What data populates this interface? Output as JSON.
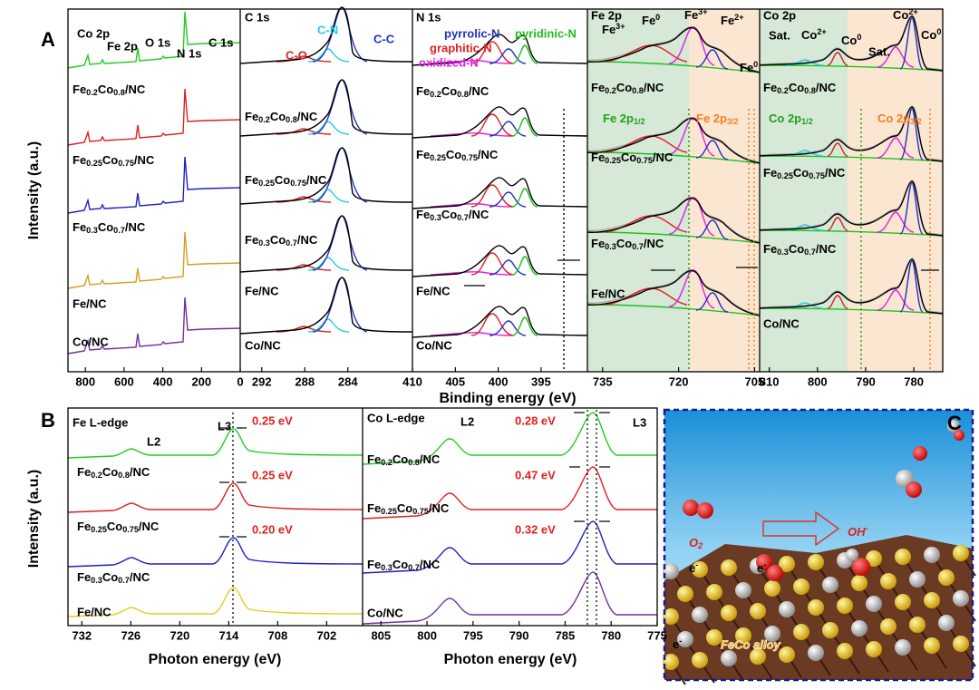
{
  "panel_a": {
    "label": "A",
    "y_title": "Intensity (a.u.)",
    "x_title": "Binding energy (eV)",
    "panels": [
      {
        "xlim": [
          890,
          0
        ],
        "xticks": [
          800,
          600,
          400,
          200,
          0
        ],
        "peaks": [
          "Co 2p",
          "Fe 2p",
          "O 1s",
          "N 1s",
          "C 1s"
        ],
        "samples": [
          "Fe0.2Co0.8/NC",
          "Fe0.25Co0.75/NC",
          "Fe0.3Co0.7/NC",
          "Fe/NC",
          "Co/NC"
        ]
      },
      {
        "title": "C 1s",
        "xlim": [
          294,
          278
        ],
        "xticks": [
          292,
          288,
          284
        ],
        "peaks": [
          "C-N",
          "C-O",
          "C-C"
        ],
        "samples": [
          "Fe0.2Co0.8/NC",
          "Fe0.25Co0.75/NC",
          "Fe0.3Co0.7/NC",
          "Fe/NC",
          "Co/NC"
        ]
      },
      {
        "title": "N 1s",
        "xlim": [
          410,
          389.6
        ],
        "xticks": [
          410,
          405,
          400,
          395
        ],
        "peaks": [
          "pyrrolic-N",
          "pyridinic-N",
          "graphitic-N",
          "oxidized-N"
        ],
        "samples": [
          "Fe0.2Co0.8/NC",
          "Fe0.25Co0.75/NC",
          "Fe0.3Co0.7/NC",
          "Fe/NC",
          "Co/NC"
        ]
      },
      {
        "title": "Fe 2p",
        "xlim": [
          738,
          704
        ],
        "xticks": [
          735,
          720,
          705
        ],
        "peaks": [
          "Fe3+",
          "Fe0",
          "Fe3+",
          "Fe2+",
          "Fe0"
        ],
        "regions": [
          "Fe 2p1/2",
          "Fe 2p3/2"
        ],
        "samples": [
          "Fe0.2Co0.8/NC",
          "Fe0.25Co0.75/NC",
          "Fe0.3Co0.7/NC",
          "Fe/NC"
        ]
      },
      {
        "title": "Co 2p",
        "xlim": [
          812,
          774
        ],
        "xticks": [
          810,
          800,
          790,
          780
        ],
        "peaks": [
          "Sat.",
          "Co2+",
          "Co0",
          "Co2+",
          "Sat.",
          "Co0"
        ],
        "regions": [
          "Co 2p1/2",
          "Co 2p3/2"
        ],
        "samples": [
          "Fe0.2Co0.8/NC",
          "Fe0.25Co0.75/NC",
          "Fe0.3Co0.7/NC",
          "Co/NC"
        ]
      }
    ]
  },
  "panel_b": {
    "label": "B",
    "y_title": "Intensity (a.u.)",
    "panels": [
      {
        "title": "Fe L-edge",
        "edges": [
          "L2",
          "L3"
        ],
        "shifts": [
          "0.25 eV",
          "0.25 eV",
          "0.20 eV"
        ],
        "samples": [
          "Fe0.2Co0.8/NC",
          "Fe0.25Co0.75/NC",
          "Fe0.3Co0.7/NC",
          "Fe/NC"
        ],
        "xlim": [
          733.7,
          697.6
        ],
        "xticks": [
          732,
          726,
          720,
          714,
          708,
          702
        ],
        "x_title": "Photon energy (eV)"
      },
      {
        "title": "Co L-edge",
        "edges": [
          "L2",
          "L3"
        ],
        "shifts": [
          "0.28 eV",
          "0.47 eV",
          "0.32 eV"
        ],
        "samples": [
          "Fe0.2Co0.8/NC",
          "Fe0.25Co0.75/NC",
          "Fe0.3Co0.7/NC",
          "Co/NC"
        ],
        "xlim": [
          807,
          775
        ],
        "xticks": [
          805,
          800,
          795,
          790,
          785,
          780,
          775
        ],
        "x_title": "Photon energy (eV)"
      }
    ]
  },
  "panel_c": {
    "label": "C",
    "texts": [
      "O2",
      "OH-",
      "e-",
      "e-",
      "e-",
      "FeCo alloy"
    ]
  }
}
